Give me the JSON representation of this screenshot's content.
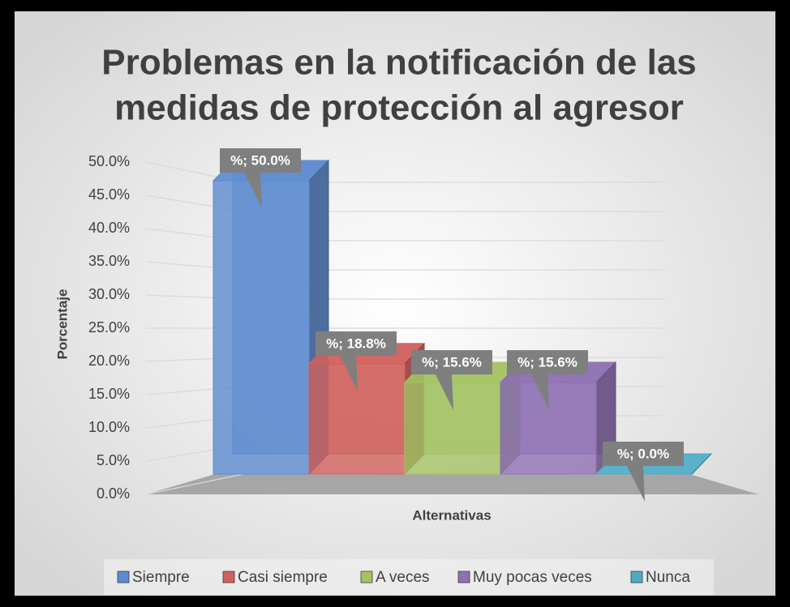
{
  "chart_data": {
    "type": "bar3d",
    "title": "Problemas en la notificación de las",
    "title_line2": "medidas de protección al agresor",
    "y_axis_label": "Porcentaje",
    "x_axis_label": "Alternativas",
    "series": [
      {
        "name": "Siempre",
        "color": "#5b8bd0",
        "values": [
          50.0
        ],
        "value_labels": [
          "%; 50.0%"
        ]
      },
      {
        "name": "Casi siempre",
        "color": "#d0605c",
        "values": [
          18.8
        ],
        "value_labels": [
          "%; 18.8%"
        ]
      },
      {
        "name": "A veces",
        "color": "#a3c262",
        "values": [
          15.6
        ],
        "value_labels": [
          "%; 15.6%"
        ]
      },
      {
        "name": "Muy pocas veces",
        "color": "#8e70b4",
        "values": [
          15.6
        ],
        "value_labels": [
          "%; 15.6%"
        ]
      },
      {
        "name": "Nunca",
        "color": "#4bacc6",
        "values": [
          0.0
        ],
        "value_labels": [
          "%; 0.0%"
        ]
      }
    ],
    "ylim": [
      0,
      50
    ],
    "yticks": [
      {
        "value": 0,
        "label": "0.0%"
      },
      {
        "value": 5,
        "label": "5.0%"
      },
      {
        "value": 10,
        "label": "10.0%"
      },
      {
        "value": 15,
        "label": "15.0%"
      },
      {
        "value": 20,
        "label": "20.0%"
      },
      {
        "value": 25,
        "label": "25.0%"
      },
      {
        "value": 30,
        "label": "30.0%"
      },
      {
        "value": 35,
        "label": "35.0%"
      },
      {
        "value": 40,
        "label": "40.0%"
      },
      {
        "value": 45,
        "label": "45.0%"
      },
      {
        "value": 50,
        "label": "50.0%"
      }
    ],
    "grid": true,
    "legend": "bottom"
  }
}
